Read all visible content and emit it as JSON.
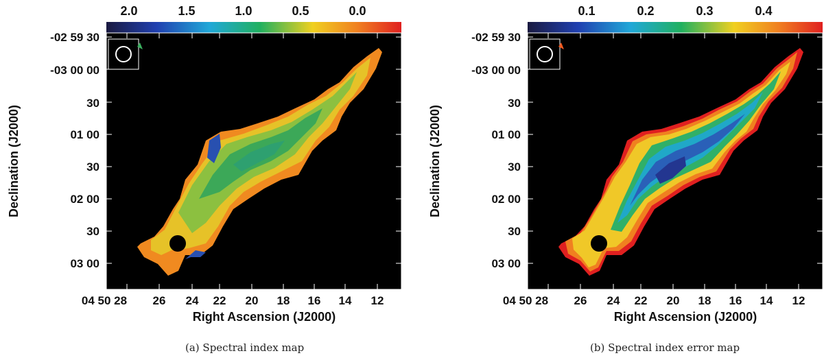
{
  "figure": {
    "panels": [
      {
        "id": "a",
        "caption": "(a) Spectral index map",
        "colorbar": {
          "ticks": [
            "2.0",
            "1.5",
            "1.0",
            "0.5",
            "0.0"
          ],
          "tick_values": [
            2.0,
            1.5,
            1.0,
            0.5,
            0.0
          ],
          "range": [
            2.3,
            -0.3
          ],
          "colormap": [
            "#1a1a40",
            "#2040b0",
            "#20a8d8",
            "#20b060",
            "#f0d020",
            "#f08020",
            "#e02020"
          ]
        },
        "ylabel": "Declination (J2000)",
        "xlabel": "Right Ascension (J2000)",
        "beam": "circle",
        "fill_style": "spectral-index"
      },
      {
        "id": "b",
        "caption": "(b) Spectral index error map",
        "colorbar": {
          "ticks": [
            "0.1",
            "0.2",
            "0.3",
            "0.4"
          ],
          "tick_values": [
            0.1,
            0.2,
            0.3,
            0.4
          ],
          "range": [
            0.0,
            0.5
          ],
          "colormap": [
            "#1a1a40",
            "#2040b0",
            "#20a8d8",
            "#20b060",
            "#f0d020",
            "#f08020",
            "#e02020"
          ]
        },
        "ylabel": "Declination (J2000)",
        "xlabel": "Right Ascension (J2000)",
        "beam": "circle",
        "fill_style": "error"
      }
    ],
    "y_ticks": [
      "-02 59 30",
      "-03 00 00",
      "30",
      "01 00",
      "30",
      "02 00",
      "30",
      "03 00"
    ],
    "x_ticks": [
      "04 50 28",
      "26",
      "24",
      "22",
      "20",
      "18",
      "16",
      "14",
      "12"
    ]
  }
}
